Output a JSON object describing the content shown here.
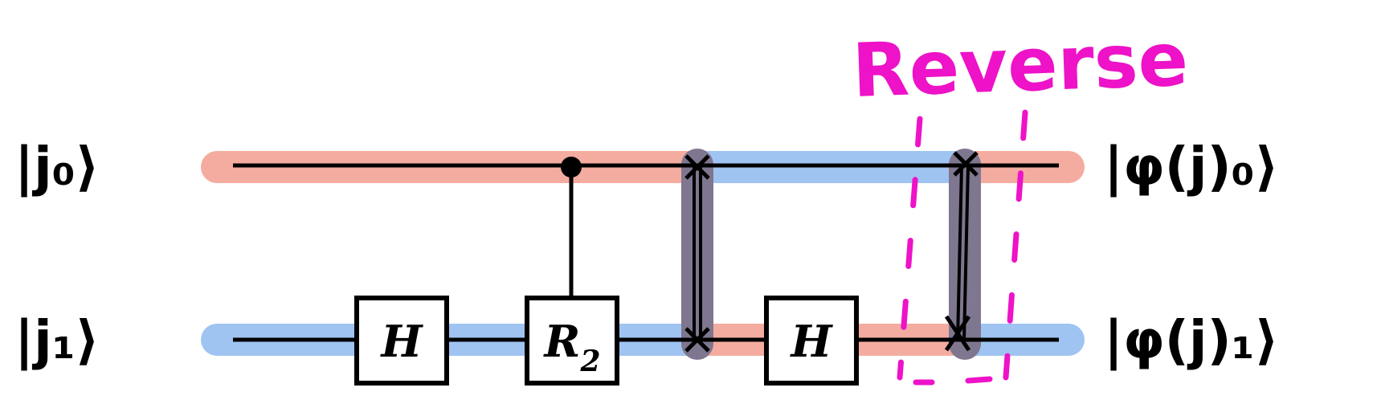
{
  "inputs": {
    "q0": "|j₀⟩",
    "q1": "|j₁⟩"
  },
  "outputs": {
    "q0": "|φ(j)₀⟩",
    "q1": "|φ(j)₁⟩"
  },
  "gates": {
    "h1": "H",
    "r2": "R",
    "r2_sub": "2",
    "h2": "H"
  },
  "annotation": "Reverse",
  "colors": {
    "red_highlight": "#f4aca0",
    "blue_highlight": "#9fc4f2",
    "swap_highlight": "#7f768f",
    "annotation": "#ee12c8",
    "wire": "#000000"
  }
}
